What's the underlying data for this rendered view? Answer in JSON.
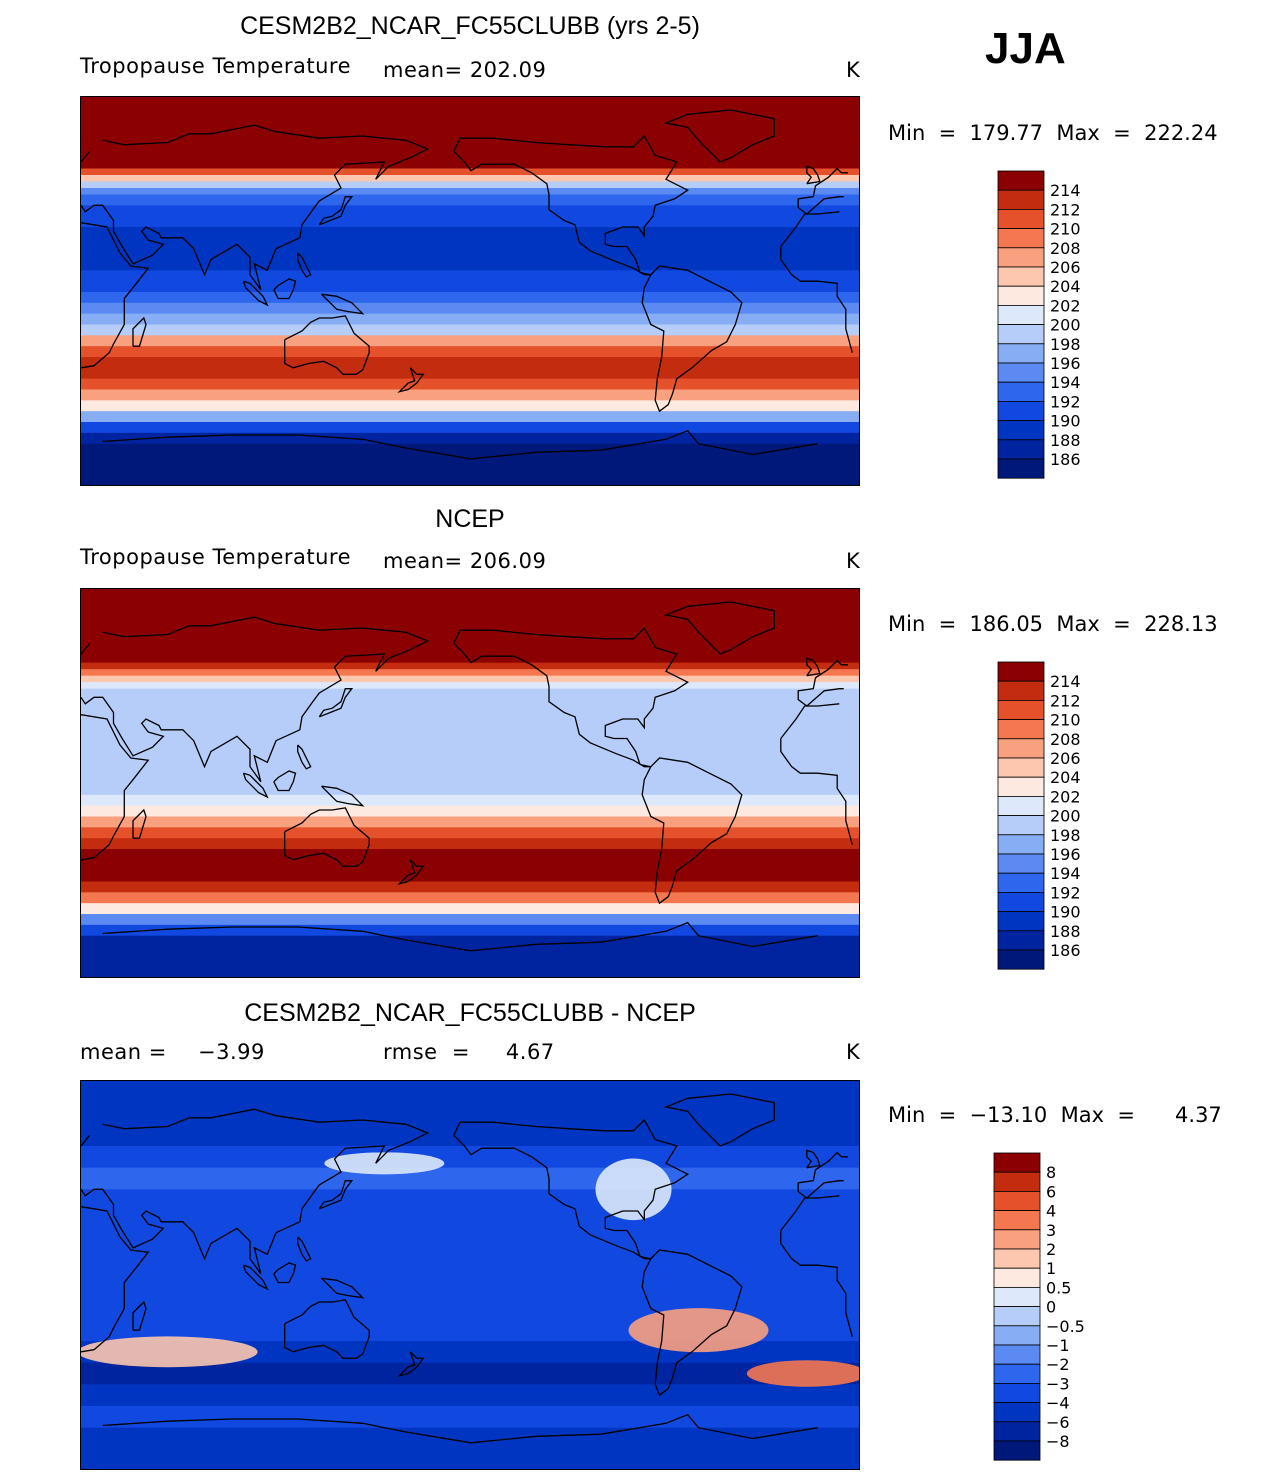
{
  "season": "JJA",
  "colors": {
    "temp": [
      "#00187a",
      "#0024a0",
      "#0035c2",
      "#1149e0",
      "#2f66ee",
      "#5a8af2",
      "#87adf5",
      "#b5cdf8",
      "#dde9fb",
      "#fde9df",
      "#fcc7ae",
      "#f9a07f",
      "#f57750",
      "#e5512b",
      "#c42c10",
      "#8b0000"
    ],
    "diff": [
      "#00187a",
      "#0024a0",
      "#0035c2",
      "#1149e0",
      "#2f66ee",
      "#5a8af2",
      "#87adf5",
      "#b5cdf8",
      "#dde9fb",
      "#fde9df",
      "#fcc7ae",
      "#f9a07f",
      "#f57750",
      "#e5512b",
      "#c42c10",
      "#8b0000"
    ]
  },
  "panels": [
    {
      "title": "CESM2B2_NCAR_FC55CLUBB (yrs 2-5)",
      "field": "Tropopause Temperature",
      "stat1": "mean=  202.09",
      "stat2": "",
      "units": "K",
      "minmax": "Min  =  179.77  Max  =  222.24",
      "colorbar_labels": [
        "214",
        "212",
        "210",
        "208",
        "206",
        "204",
        "202",
        "200",
        "198",
        "196",
        "194",
        "192",
        "190",
        "188",
        "186"
      ],
      "profile": [
        [
          90,
          16
        ],
        [
          70,
          16
        ],
        [
          62,
          16
        ],
        [
          57,
          14
        ],
        [
          54,
          11
        ],
        [
          51,
          8
        ],
        [
          48,
          6
        ],
        [
          45,
          5
        ],
        [
          40,
          4
        ],
        [
          35,
          4
        ],
        [
          30,
          3
        ],
        [
          25,
          3
        ],
        [
          20,
          3
        ],
        [
          15,
          3
        ],
        [
          10,
          4
        ],
        [
          5,
          4
        ],
        [
          0,
          5
        ],
        [
          -5,
          6
        ],
        [
          -10,
          7
        ],
        [
          -15,
          8
        ],
        [
          -20,
          12
        ],
        [
          -25,
          14
        ],
        [
          -30,
          15
        ],
        [
          -35,
          15
        ],
        [
          -40,
          14
        ],
        [
          -45,
          12
        ],
        [
          -50,
          10
        ],
        [
          -55,
          7
        ],
        [
          -60,
          4
        ],
        [
          -65,
          2
        ],
        [
          -70,
          1
        ],
        [
          -90,
          1
        ]
      ]
    },
    {
      "title": "NCEP",
      "field": "Tropopause Temperature",
      "stat1": "mean=  206.09",
      "stat2": "",
      "units": "K",
      "minmax": "Min  =  186.05  Max  =  228.13",
      "colorbar_labels": [
        "214",
        "212",
        "210",
        "208",
        "206",
        "204",
        "202",
        "200",
        "198",
        "196",
        "194",
        "192",
        "190",
        "188",
        "186"
      ],
      "profile": [
        [
          90,
          16
        ],
        [
          60,
          16
        ],
        [
          56,
          15
        ],
        [
          53,
          13
        ],
        [
          50,
          11
        ],
        [
          47,
          9
        ],
        [
          44,
          8
        ],
        [
          40,
          8
        ],
        [
          35,
          8
        ],
        [
          30,
          8
        ],
        [
          25,
          8
        ],
        [
          20,
          8
        ],
        [
          15,
          8
        ],
        [
          10,
          8
        ],
        [
          5,
          8
        ],
        [
          0,
          8
        ],
        [
          -5,
          9
        ],
        [
          -10,
          10
        ],
        [
          -15,
          12
        ],
        [
          -20,
          14
        ],
        [
          -25,
          15
        ],
        [
          -30,
          16
        ],
        [
          -35,
          16
        ],
        [
          -40,
          16
        ],
        [
          -45,
          15
        ],
        [
          -50,
          13
        ],
        [
          -55,
          10
        ],
        [
          -60,
          6
        ],
        [
          -65,
          4
        ],
        [
          -70,
          2
        ],
        [
          -90,
          1
        ]
      ]
    },
    {
      "title": "CESM2B2_NCAR_FC55CLUBB - NCEP",
      "field": "mean  =",
      "stat1": "−3.99",
      "stat2": "rmse  =     4.67",
      "units": "K",
      "minmax": "Min  =  −13.10  Max  =      4.37",
      "colorbar_labels": [
        "8",
        "6",
        "4",
        "3",
        "2",
        "1",
        "0.5",
        "0",
        "−0.5",
        "−1",
        "−2",
        "−3",
        "−4",
        "−6",
        "−8"
      ],
      "profile": [
        [
          90,
          3
        ],
        [
          70,
          3
        ],
        [
          60,
          4
        ],
        [
          50,
          5
        ],
        [
          40,
          4
        ],
        [
          30,
          4
        ],
        [
          20,
          4
        ],
        [
          10,
          4
        ],
        [
          0,
          4
        ],
        [
          -10,
          4
        ],
        [
          -20,
          4
        ],
        [
          -30,
          3
        ],
        [
          -40,
          2
        ],
        [
          -50,
          3
        ],
        [
          -60,
          4
        ],
        [
          -70,
          3
        ],
        [
          -90,
          3
        ]
      ]
    }
  ]
}
